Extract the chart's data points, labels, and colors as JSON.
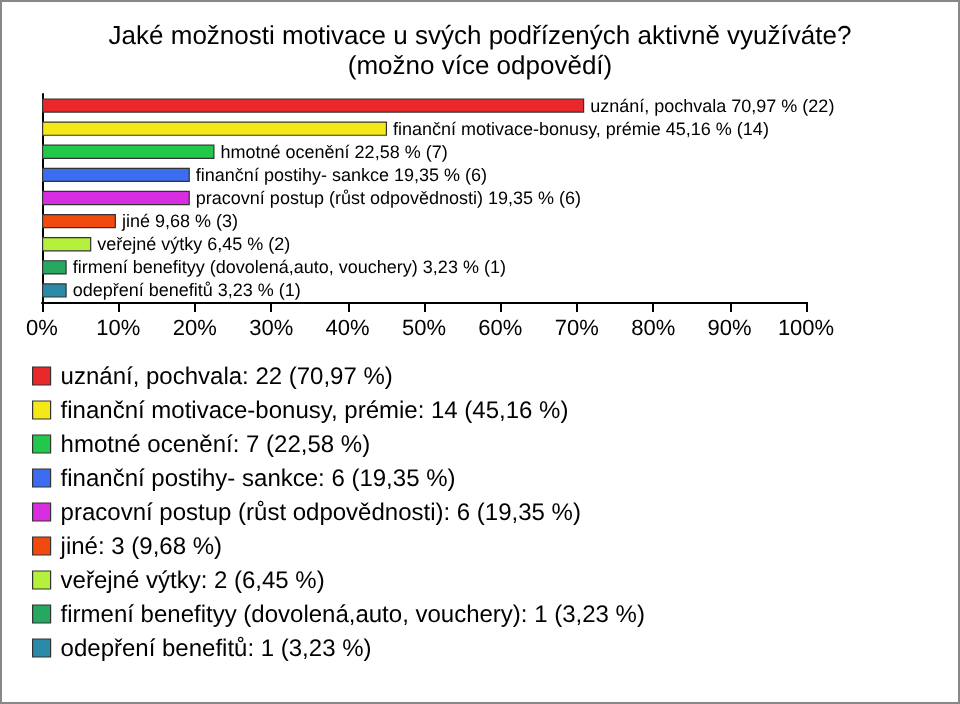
{
  "chart_data": {
    "type": "bar",
    "orientation": "horizontal",
    "title": "Jaké možnosti motivace u svých podřízených aktivně využíváte?\n(možno více odpovědí)",
    "categories": [
      null,
      null,
      null,
      null,
      null,
      null,
      null,
      null,
      null
    ],
    "series": [
      {
        "name": "uznání, pochvala: 22 (70,97 %)",
        "color": "#e8282a",
        "values": [
          70.97,
          null,
          null,
          null,
          null,
          null,
          null,
          null,
          null
        ],
        "value_labels": [
          "uznání, pochvala 70,97 % (22)",
          null,
          null,
          null,
          null,
          null,
          null,
          null,
          null
        ]
      },
      {
        "name": "finanční motivace-bonusy, prémie: 14 (45,16 %)",
        "color": "#f4e818",
        "values": [
          null,
          45.16,
          null,
          null,
          null,
          null,
          null,
          null,
          null
        ],
        "value_labels": [
          null,
          "finanční motivace-bonusy, prémie 45,16 % (14)",
          null,
          null,
          null,
          null,
          null,
          null,
          null
        ]
      },
      {
        "name": "hmotné ocenění: 7 (22,58 %)",
        "color": "#22c84a",
        "values": [
          null,
          null,
          22.58,
          null,
          null,
          null,
          null,
          null,
          null
        ],
        "value_labels": [
          null,
          null,
          "hmotné ocenění 22,58 % (7)",
          null,
          null,
          null,
          null,
          null,
          null
        ]
      },
      {
        "name": "finanční postihy- sankce: 6 (19,35 %)",
        "color": "#3c6cf0",
        "values": [
          null,
          null,
          null,
          19.35,
          null,
          null,
          null,
          null,
          null
        ],
        "value_labels": [
          null,
          null,
          null,
          "finanční postihy- sankce 19,35 % (6)",
          null,
          null,
          null,
          null,
          null
        ]
      },
      {
        "name": "pracovní postup (růst odpovědnosti): 6 (19,35 %)",
        "color": "#d62ee0",
        "values": [
          null,
          null,
          null,
          null,
          19.35,
          null,
          null,
          null,
          null
        ],
        "value_labels": [
          null,
          null,
          null,
          null,
          "pracovní postup (růst odpovědnosti) 19,35 % (6)",
          null,
          null,
          null,
          null
        ]
      },
      {
        "name": "jiné: 3 (9,68 %)",
        "color": "#f04a10",
        "values": [
          null,
          null,
          null,
          null,
          null,
          9.68,
          null,
          null,
          null
        ],
        "value_labels": [
          null,
          null,
          null,
          null,
          null,
          "jiné 9,68 % (3)",
          null,
          null,
          null
        ]
      },
      {
        "name": "veřejné výtky: 2 (6,45 %)",
        "color": "#b4f03c",
        "values": [
          null,
          null,
          null,
          null,
          null,
          null,
          6.45,
          null,
          null
        ],
        "value_labels": [
          null,
          null,
          null,
          null,
          null,
          null,
          "veřejné výtky 6,45 % (2)",
          null,
          null
        ]
      },
      {
        "name": "firmení benefityy (dovolená,auto, vouchery): 1 (3,23 %)",
        "color": "#26a860",
        "values": [
          null,
          null,
          null,
          null,
          null,
          null,
          null,
          3.23,
          null
        ],
        "value_labels": [
          null,
          null,
          null,
          null,
          null,
          null,
          null,
          "firmení benefityy (dovolená,auto, vouchery) 3,23 % (1)",
          null
        ]
      },
      {
        "name": "odepření benefitů: 1 (3,23 %)",
        "color": "#2a8aa8",
        "values": [
          null,
          null,
          null,
          null,
          null,
          null,
          null,
          null,
          3.23
        ],
        "value_labels": [
          null,
          null,
          null,
          null,
          null,
          null,
          null,
          null,
          "odepření benefitů 3,23 % (1)"
        ]
      }
    ],
    "xlim": [
      0,
      100
    ],
    "xticks": [
      {
        "value": 0,
        "label": "0%"
      },
      {
        "value": 10,
        "label": "10%"
      },
      {
        "value": 20,
        "label": "20%"
      },
      {
        "value": 30,
        "label": "30%"
      },
      {
        "value": 40,
        "label": "40%"
      },
      {
        "value": 50,
        "label": "50%"
      },
      {
        "value": 60,
        "label": "60%"
      },
      {
        "value": 70,
        "label": "70%"
      },
      {
        "value": 80,
        "label": "80%"
      },
      {
        "value": 90,
        "label": "90%"
      },
      {
        "value": 100,
        "label": "100%"
      }
    ],
    "legend": "bottom",
    "grid": false
  }
}
